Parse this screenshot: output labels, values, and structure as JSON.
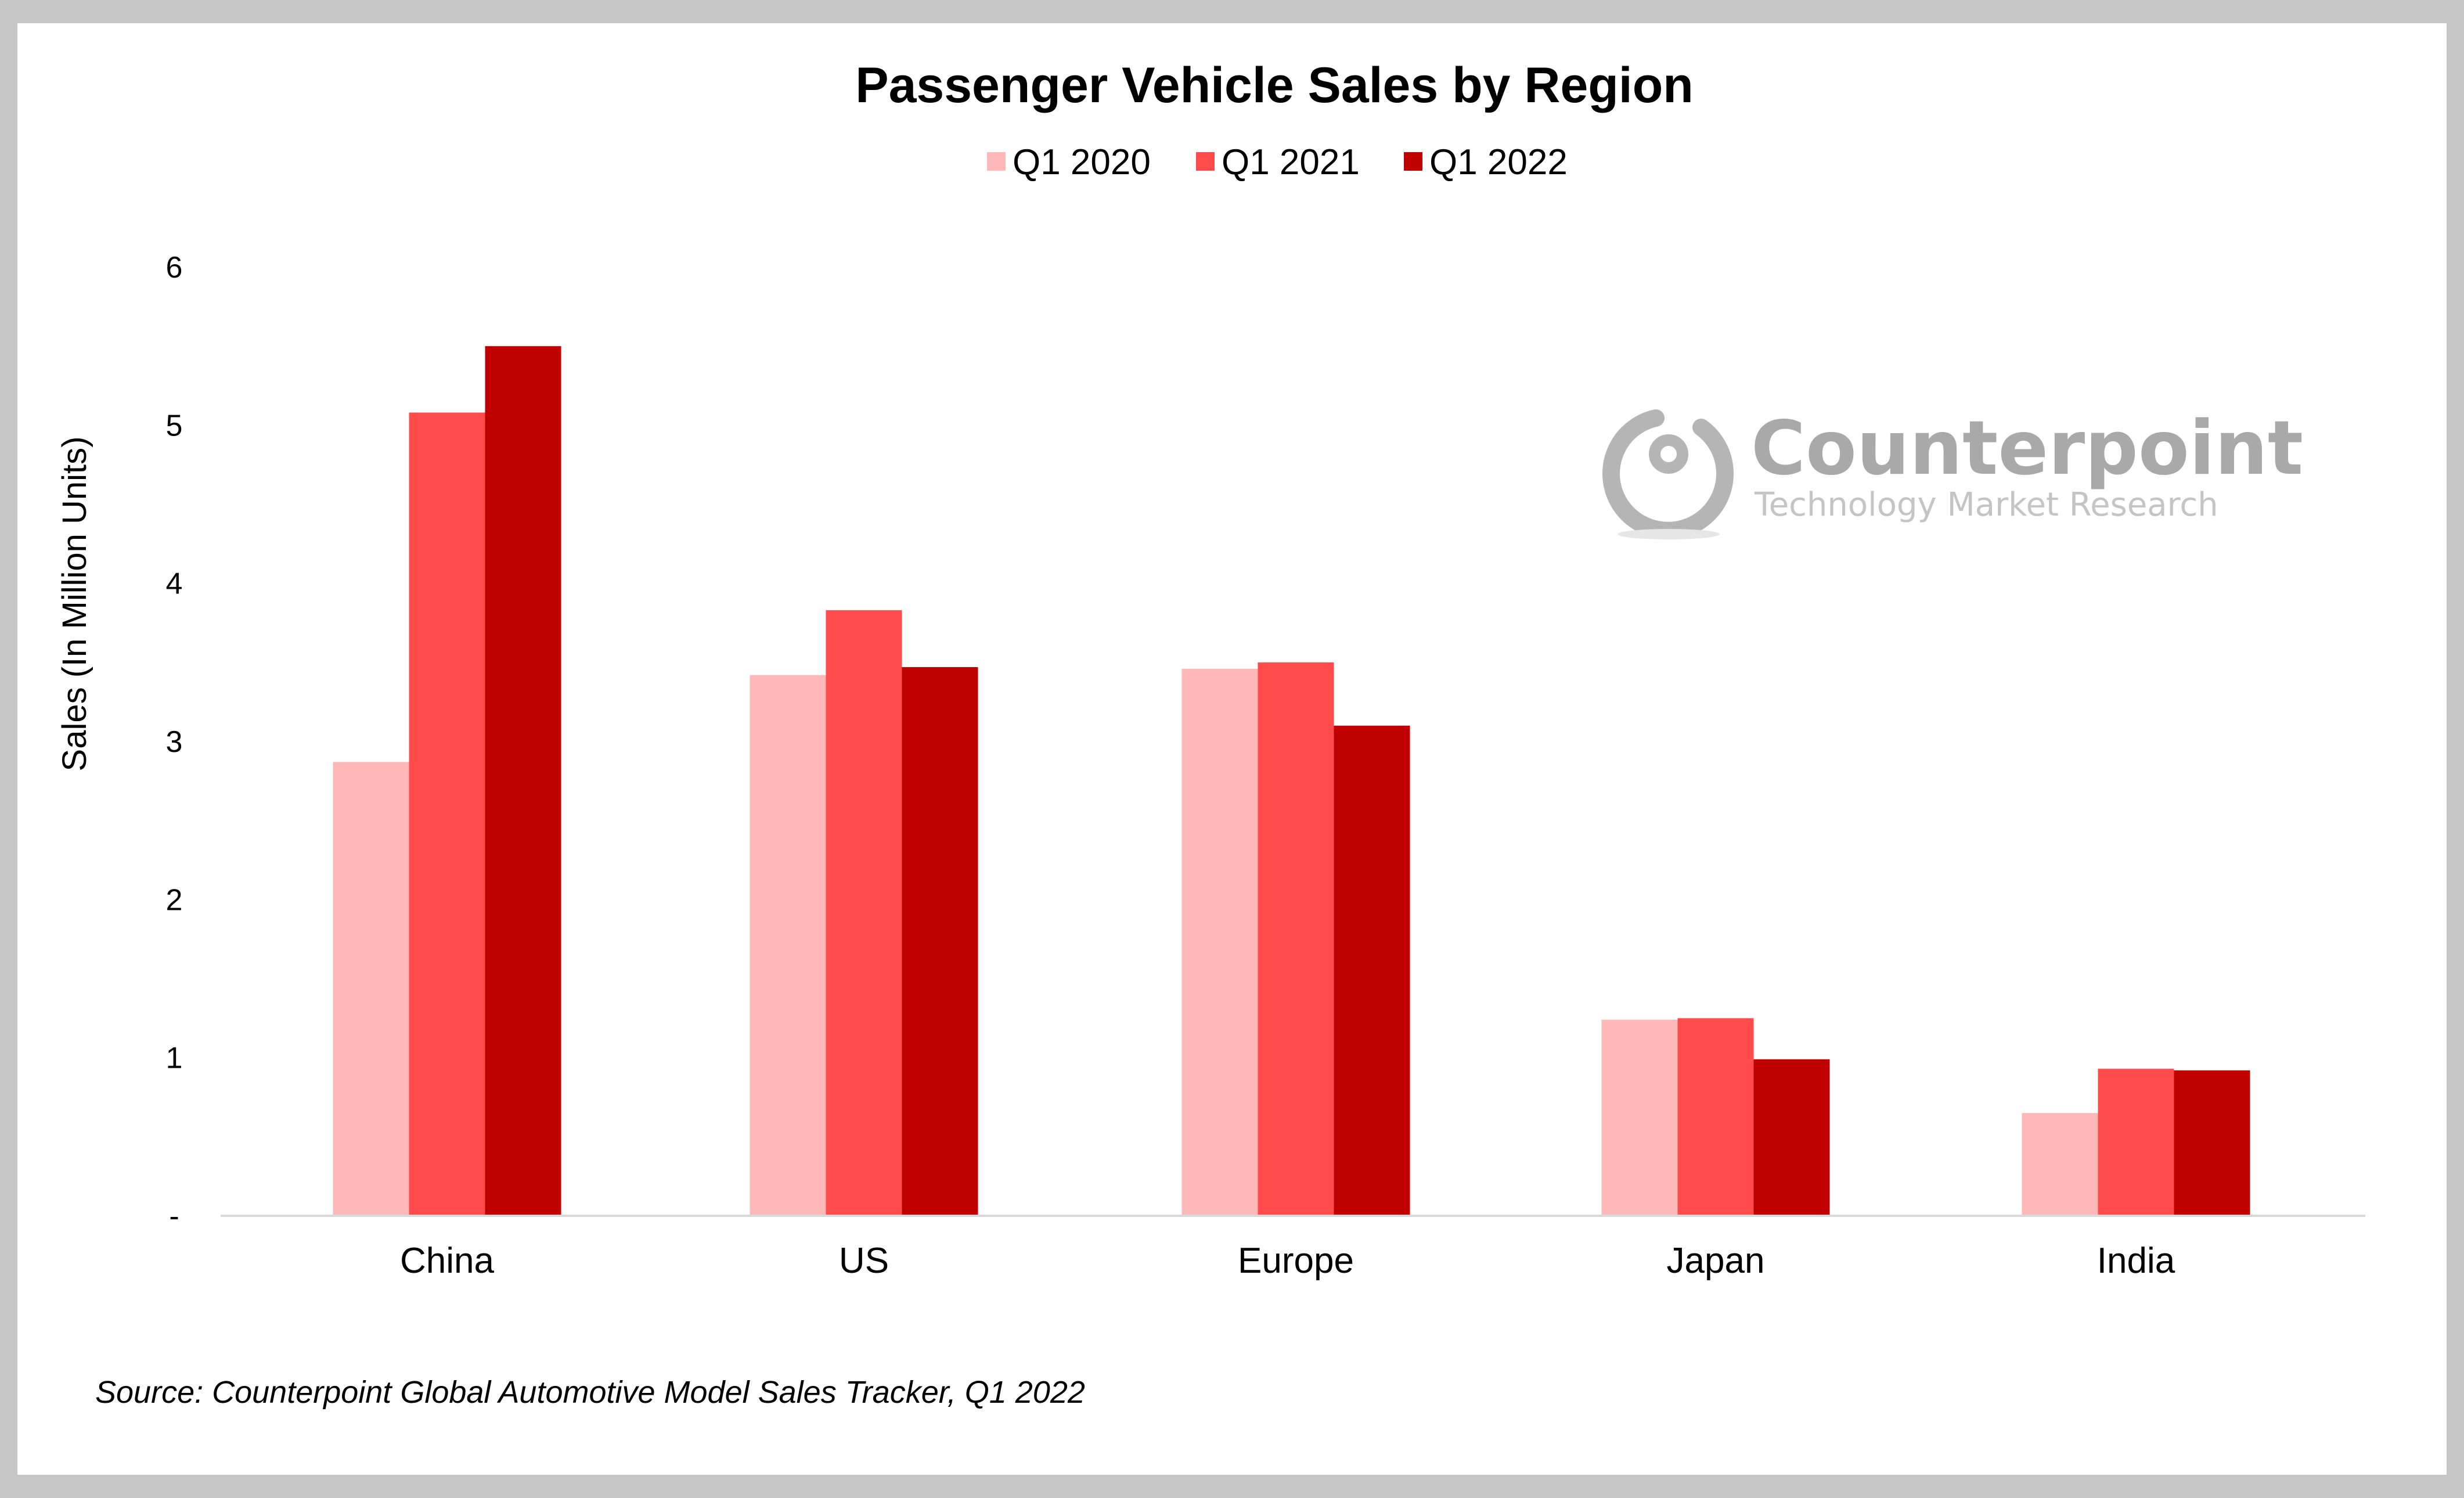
{
  "chart_data": {
    "type": "bar",
    "title": "Passenger Vehicle Sales by Region",
    "xlabel": "",
    "ylabel": "Sales (In Million Units)",
    "ylim": [
      0,
      6
    ],
    "yticks": [
      {
        "value": 0,
        "label": "-"
      },
      {
        "value": 1,
        "label": "1"
      },
      {
        "value": 2,
        "label": "2"
      },
      {
        "value": 3,
        "label": "3"
      },
      {
        "value": 4,
        "label": "4"
      },
      {
        "value": 5,
        "label": "5"
      },
      {
        "value": 6,
        "label": "6"
      }
    ],
    "categories": [
      "China",
      "US",
      "Europe",
      "Japan",
      "India"
    ],
    "series": [
      {
        "name": "Q1 2020",
        "color": "#ffb8b8",
        "values": [
          2.87,
          3.42,
          3.46,
          1.24,
          0.65
        ]
      },
      {
        "name": "Q1 2021",
        "color": "#ff4b4b",
        "values": [
          5.08,
          3.83,
          3.5,
          1.25,
          0.93
        ]
      },
      {
        "name": "Q1 2022",
        "color": "#c00000",
        "values": [
          5.5,
          3.47,
          3.1,
          0.99,
          0.92
        ]
      }
    ],
    "legend": "top-center",
    "grid": false
  },
  "logo": {
    "name": "Counterpoint",
    "tagline": "Technology Market Research"
  },
  "source": "Source: Counterpoint Global Automotive Model Sales Tracker, Q1 2022",
  "colors": {
    "background": "#c6c6c6",
    "panel": "#ffffff",
    "axis": "#d9d9d9"
  }
}
